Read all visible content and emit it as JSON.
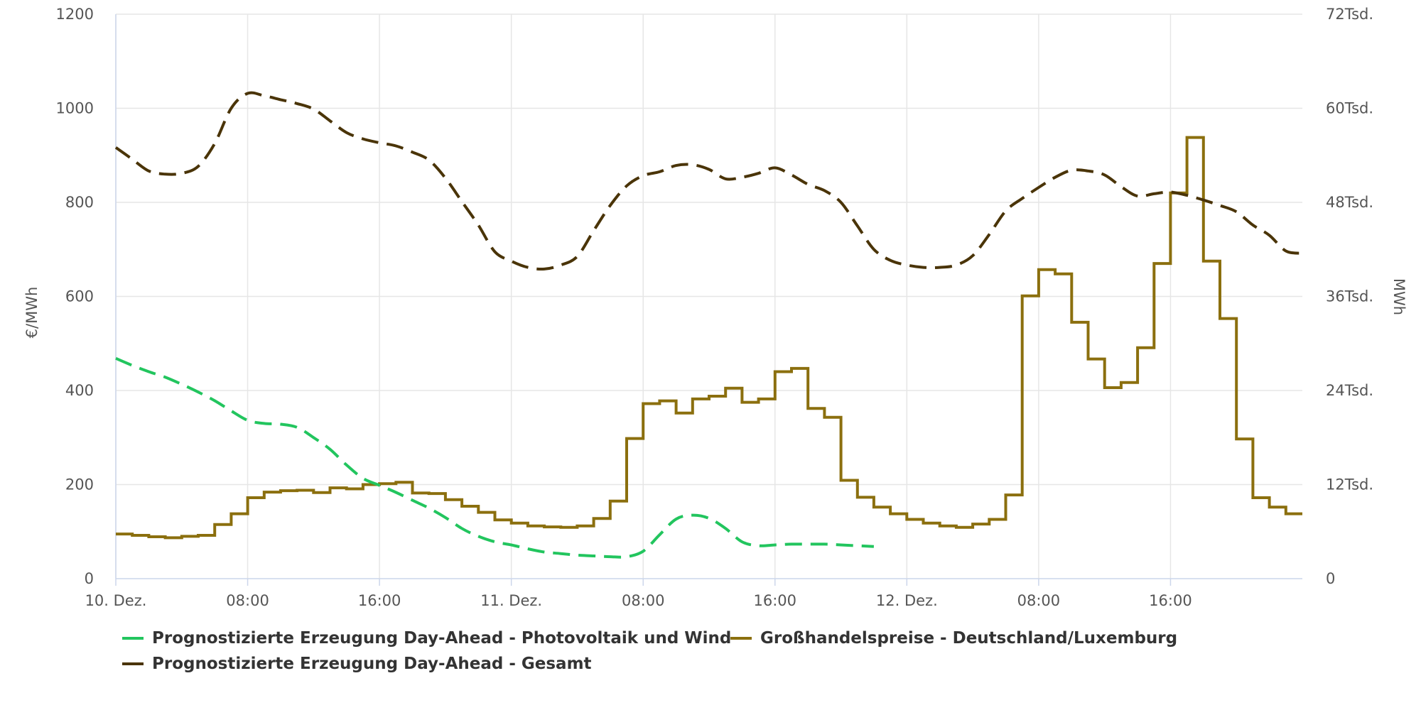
{
  "chart_data": {
    "type": "line",
    "x_labels": [
      "10. Dez.",
      "08:00",
      "16:00",
      "11. Dez.",
      "08:00",
      "16:00",
      "12. Dez.",
      "08:00",
      "16:00"
    ],
    "x_range_hours": [
      0,
      72
    ],
    "y_left": {
      "label": "€/MWh",
      "min": 0,
      "max": 1200,
      "ticks": [
        "0",
        "200",
        "400",
        "600",
        "800",
        "1000",
        "1200"
      ]
    },
    "y_right": {
      "label": "MWh",
      "min": 0,
      "max": 72000,
      "ticks": [
        "0",
        "12Tsd.",
        "24Tsd.",
        "36Tsd.",
        "48Tsd.",
        "60Tsd.",
        "72Tsd."
      ]
    },
    "grid": true,
    "legend_position": "bottom",
    "series": [
      {
        "name": "Prognostizierte Erzeugung Day-Ahead - Photovoltaik und Wind",
        "color": "#22c55e",
        "axis": "right",
        "style": "dashed",
        "hours": [
          0,
          1,
          2,
          3,
          4,
          5,
          6,
          7,
          8,
          9,
          10,
          11,
          12,
          13,
          14,
          15,
          16,
          17,
          18,
          19,
          20,
          21,
          22,
          23,
          24,
          25,
          26,
          27,
          28,
          29,
          30,
          31,
          32,
          33,
          34,
          35,
          36,
          37,
          38,
          39,
          40,
          41,
          42,
          43,
          44,
          45,
          46
        ],
        "values": [
          28100,
          27200,
          26400,
          25700,
          24800,
          23800,
          22700,
          21400,
          20200,
          19800,
          19700,
          19300,
          18000,
          16500,
          14500,
          12800,
          11900,
          11000,
          10000,
          9000,
          7800,
          6400,
          5400,
          4700,
          4300,
          3800,
          3400,
          3200,
          3000,
          2900,
          2800,
          2800,
          3500,
          5600,
          7600,
          8100,
          7700,
          6400,
          4700,
          4200,
          4300,
          4400,
          4400,
          4400,
          4300,
          4200,
          4100
        ]
      },
      {
        "name": "Großhandelspreise - Deutschland/Luxemburg",
        "color": "#8b6f0e",
        "axis": "left",
        "style": "step",
        "values": [
          95,
          92,
          89,
          87,
          90,
          92,
          115,
          138,
          172,
          184,
          187,
          188,
          183,
          193,
          191,
          200,
          202,
          205,
          182,
          181,
          168,
          154,
          141,
          125,
          118,
          112,
          110,
          109,
          112,
          128,
          165,
          298,
          372,
          378,
          352,
          382,
          388,
          405,
          375,
          382,
          440,
          447,
          362,
          343,
          209,
          173,
          152,
          138,
          126,
          118,
          112,
          109,
          116,
          126,
          178,
          601,
          657,
          648,
          545,
          467,
          406,
          417,
          491,
          670,
          820,
          938,
          675,
          553,
          297,
          172,
          152,
          138
        ]
      },
      {
        "name": "Prognostizierte Erzeugung Day-Ahead - Gesamt",
        "color": "#4a3408",
        "axis": "right",
        "style": "dashed",
        "hours": [
          0,
          1,
          2,
          3,
          4,
          5,
          6,
          7,
          8,
          9,
          10,
          11,
          12,
          13,
          14,
          15,
          16,
          17,
          18,
          19,
          20,
          21,
          22,
          23,
          24,
          25,
          26,
          27,
          28,
          29,
          30,
          31,
          32,
          33,
          34,
          35,
          36,
          37,
          38,
          39,
          40,
          41,
          42,
          43,
          44,
          45,
          46,
          47,
          48,
          49,
          50,
          51,
          52,
          53,
          54,
          55,
          56,
          57,
          58,
          59,
          60,
          61,
          62,
          63,
          64,
          65,
          66,
          67,
          68,
          69,
          70,
          71,
          72
        ],
        "values": [
          55000,
          53500,
          52000,
          51600,
          51700,
          52600,
          55500,
          60000,
          61900,
          61600,
          61100,
          60600,
          59900,
          58400,
          56900,
          56100,
          55600,
          55200,
          54400,
          53400,
          51100,
          48100,
          45100,
          41700,
          40500,
          39700,
          39500,
          40000,
          41100,
          44400,
          47600,
          50100,
          51400,
          51900,
          52700,
          52800,
          52200,
          51000,
          51200,
          51700,
          52400,
          51500,
          50300,
          49500,
          48000,
          45000,
          42000,
          40600,
          40000,
          39700,
          39700,
          40000,
          41200,
          43900,
          46900,
          48500,
          49900,
          51200,
          52100,
          52000,
          51500,
          50000,
          48800,
          49100,
          49300,
          48900,
          48300,
          47600,
          46800,
          45100,
          43800,
          41800,
          41500
        ]
      }
    ]
  }
}
